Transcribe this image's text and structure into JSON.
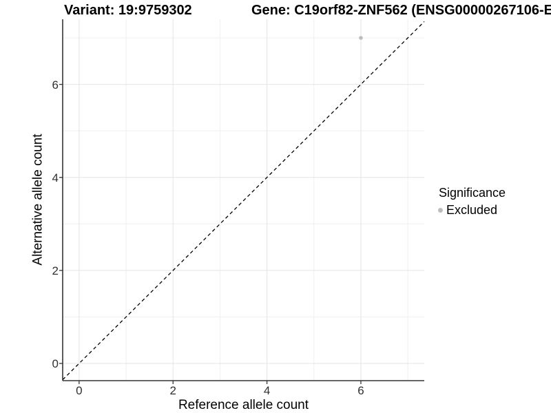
{
  "chart_data": {
    "type": "scatter",
    "titles": {
      "variant": "Variant: 19:9759302",
      "gene": "Gene: C19orf82-ZNF562 (ENSG00000267106-E"
    },
    "xlabel": "Reference allele count",
    "ylabel": "Alternative allele count",
    "xlim": [
      -0.35,
      7.35
    ],
    "ylim": [
      -0.37,
      7.4
    ],
    "x_major_ticks": [
      0,
      2,
      4,
      6
    ],
    "x_minor_gridlines": [
      1,
      3,
      5,
      7
    ],
    "y_major_ticks": [
      0,
      2,
      4,
      6
    ],
    "y_minor_gridlines": [
      1,
      3,
      5,
      7
    ],
    "grid": true,
    "points": [
      {
        "x": 6,
        "y": 7,
        "group": "Excluded"
      }
    ],
    "identity_line": {
      "style": "dashed",
      "color": "#000000",
      "from": -0.35,
      "to": 7.35
    },
    "legend": {
      "title": "Significance",
      "position": "right",
      "items": [
        {
          "label": "Excluded",
          "color": "#bdbdbd"
        }
      ]
    }
  },
  "colors": {
    "background": "#ffffff",
    "point": "#bdbdbd",
    "grid_major": "#e4e4e4",
    "grid_minor": "#efefef",
    "axis_line": "#333333",
    "tick_label_color": "#303030",
    "reference_line": "#000000"
  }
}
